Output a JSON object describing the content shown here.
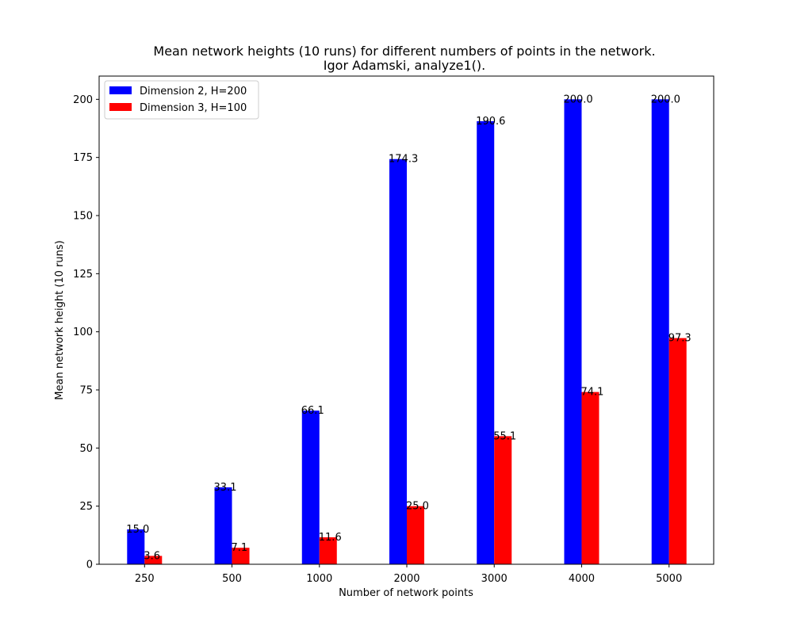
{
  "chart_data": {
    "type": "bar",
    "title": "Mean network heights (10 runs) for different numbers of points in the network.",
    "subtitle": "Igor Adamski, analyze1().",
    "xlabel": "Number of network points",
    "ylabel": "Mean network height (10 runs)",
    "categories": [
      "250",
      "500",
      "1000",
      "2000",
      "3000",
      "4000",
      "5000"
    ],
    "ylim": [
      0,
      210
    ],
    "yticks": [
      0,
      25,
      50,
      75,
      100,
      125,
      150,
      175,
      200
    ],
    "grid": false,
    "legend_position": "top-left",
    "series": [
      {
        "name": "Dimension 2, H=200",
        "color": "#0000ff",
        "values": [
          15.0,
          33.1,
          66.1,
          174.3,
          190.6,
          200.0,
          200.0
        ],
        "labels": [
          "15.0",
          "33.1",
          "66.1",
          "174.3",
          "190.6",
          "200.0",
          "200.0"
        ]
      },
      {
        "name": "Dimension 3, H=100",
        "color": "#ff0000",
        "values": [
          3.6,
          7.1,
          11.6,
          25.0,
          55.1,
          74.1,
          97.3
        ],
        "labels": [
          "3.6",
          "7.1",
          "11.6",
          "25.0",
          "55.1",
          "74.1",
          "97.3"
        ]
      }
    ]
  }
}
